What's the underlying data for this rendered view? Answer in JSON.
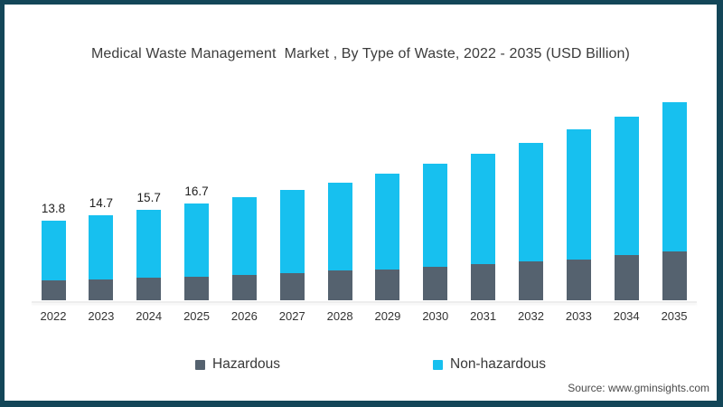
{
  "page": {
    "title": "Medical Waste Management  Market , By Type of Waste, 2022 - 2035 (USD Billion)"
  },
  "chart_data": {
    "type": "bar",
    "stacked": true,
    "title": "Medical Waste Management  Market , By Type of Waste, 2022 - 2035 (USD Billion)",
    "categories": [
      "2022",
      "2023",
      "2024",
      "2025",
      "2026",
      "2027",
      "2028",
      "2029",
      "2030",
      "2031",
      "2032",
      "2033",
      "2034",
      "2035"
    ],
    "series": [
      {
        "name": "Hazardous",
        "color": "#55626f",
        "values": [
          3.4,
          3.6,
          3.9,
          4.1,
          4.4,
          4.7,
          5.1,
          5.4,
          5.8,
          6.3,
          6.7,
          7.1,
          7.9,
          8.5
        ]
      },
      {
        "name": "Non-hazardous",
        "color": "#17c0ef",
        "values": [
          10.4,
          11.1,
          11.8,
          12.6,
          13.5,
          14.4,
          15.3,
          16.5,
          17.9,
          19.1,
          20.6,
          22.5,
          23.9,
          25.8
        ]
      }
    ],
    "totals": [
      13.8,
      14.7,
      15.7,
      16.7,
      17.9,
      19.1,
      20.4,
      21.9,
      23.7,
      25.4,
      27.3,
      29.6,
      31.8,
      34.3
    ],
    "total_labels": [
      "13.8",
      "14.7",
      "15.7",
      "16.7",
      "",
      "",
      "",
      "",
      "",
      "",
      "",
      "",
      "",
      ""
    ],
    "xlabel": "",
    "ylabel": "",
    "ylim": [
      0,
      36
    ],
    "grid": false,
    "legend_position": "bottom"
  },
  "legend": {
    "items": [
      {
        "label": "Hazardous",
        "color": "#55626f"
      },
      {
        "label": "Non-hazardous",
        "color": "#17c0ef"
      }
    ]
  },
  "source": {
    "text": "Source: www.gminsights.com"
  },
  "colors": {
    "frame_border": "#134658",
    "hazardous": "#55626f",
    "non_hazardous": "#17c0ef",
    "axis_line": "#ededed"
  }
}
